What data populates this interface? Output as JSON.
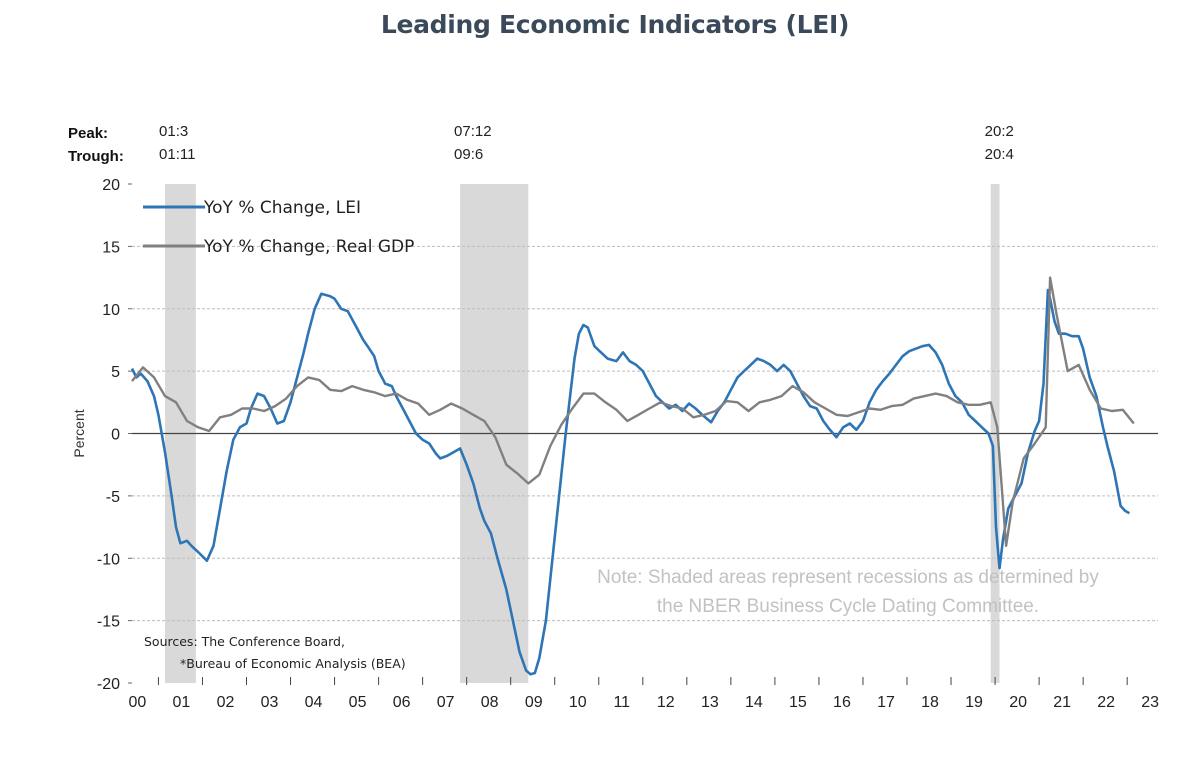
{
  "title": "Leading Economic Indicators  (LEI)",
  "chart_data": {
    "type": "line",
    "ylabel": "Percent",
    "ylim": [
      -20,
      20
    ],
    "yticks": [
      20,
      15,
      10,
      5,
      0,
      -5,
      -10,
      -15,
      -20
    ],
    "xlim": [
      2000,
      2023.3
    ],
    "xticks": [
      {
        "x": 2000.1,
        "label": "00"
      },
      {
        "x": 2001.1,
        "label": "01"
      },
      {
        "x": 2002.1,
        "label": "02"
      },
      {
        "x": 2003.1,
        "label": "03"
      },
      {
        "x": 2004.1,
        "label": "04"
      },
      {
        "x": 2005.1,
        "label": "05"
      },
      {
        "x": 2006.1,
        "label": "06"
      },
      {
        "x": 2007.1,
        "label": "07"
      },
      {
        "x": 2008.1,
        "label": "08"
      },
      {
        "x": 2009.1,
        "label": "09"
      },
      {
        "x": 2010.1,
        "label": "10"
      },
      {
        "x": 2011.1,
        "label": "11"
      },
      {
        "x": 2012.1,
        "label": "12"
      },
      {
        "x": 2013.1,
        "label": "13"
      },
      {
        "x": 2014.1,
        "label": "14"
      },
      {
        "x": 2015.1,
        "label": "15"
      },
      {
        "x": 2016.1,
        "label": "16"
      },
      {
        "x": 2017.1,
        "label": "17"
      },
      {
        "x": 2018.1,
        "label": "18"
      },
      {
        "x": 2019.1,
        "label": "19"
      },
      {
        "x": 2020.1,
        "label": "20"
      },
      {
        "x": 2021.1,
        "label": "21"
      },
      {
        "x": 2022.1,
        "label": "22"
      },
      {
        "x": 2023.1,
        "label": "23"
      }
    ],
    "grid": true,
    "legend_position": "top-left",
    "recession_header": {
      "peak": "Peak:",
      "trough": "Trough:"
    },
    "recessions": [
      {
        "start": 2000.75,
        "end": 2001.45,
        "peak": "01:3",
        "trough": "01:11"
      },
      {
        "start": 2007.45,
        "end": 2009.0,
        "peak": "07:12",
        "trough": "09:6"
      },
      {
        "start": 2019.5,
        "end": 2019.7,
        "peak": "20:2",
        "trough": "20:4"
      }
    ],
    "series": [
      {
        "name": "YoY % Change, LEI",
        "color": "#2e75b6",
        "points": [
          [
            2000.0,
            5.2
          ],
          [
            2000.1,
            4.5
          ],
          [
            2000.2,
            4.8
          ],
          [
            2000.35,
            4.2
          ],
          [
            2000.5,
            3.0
          ],
          [
            2000.6,
            1.5
          ],
          [
            2000.75,
            -1.5
          ],
          [
            2000.9,
            -5.0
          ],
          [
            2001.0,
            -7.5
          ],
          [
            2001.1,
            -8.8
          ],
          [
            2001.25,
            -8.6
          ],
          [
            2001.35,
            -9.0
          ],
          [
            2001.5,
            -9.5
          ],
          [
            2001.7,
            -10.2
          ],
          [
            2001.85,
            -9.0
          ],
          [
            2002.0,
            -6.0
          ],
          [
            2002.15,
            -3.0
          ],
          [
            2002.3,
            -0.5
          ],
          [
            2002.45,
            0.5
          ],
          [
            2002.6,
            0.8
          ],
          [
            2002.7,
            2.0
          ],
          [
            2002.85,
            3.2
          ],
          [
            2003.0,
            3.0
          ],
          [
            2003.15,
            2.0
          ],
          [
            2003.3,
            0.8
          ],
          [
            2003.45,
            1.0
          ],
          [
            2003.6,
            2.5
          ],
          [
            2003.75,
            4.5
          ],
          [
            2003.9,
            6.5
          ],
          [
            2004.0,
            8.0
          ],
          [
            2004.15,
            10.0
          ],
          [
            2004.3,
            11.2
          ],
          [
            2004.5,
            11.0
          ],
          [
            2004.6,
            10.8
          ],
          [
            2004.75,
            10.0
          ],
          [
            2004.9,
            9.8
          ],
          [
            2005.1,
            8.5
          ],
          [
            2005.25,
            7.5
          ],
          [
            2005.35,
            7.0
          ],
          [
            2005.5,
            6.2
          ],
          [
            2005.6,
            5.0
          ],
          [
            2005.75,
            4.0
          ],
          [
            2005.9,
            3.8
          ],
          [
            2006.0,
            3.0
          ],
          [
            2006.15,
            2.0
          ],
          [
            2006.3,
            1.0
          ],
          [
            2006.45,
            0.0
          ],
          [
            2006.6,
            -0.5
          ],
          [
            2006.75,
            -0.8
          ],
          [
            2006.9,
            -1.6
          ],
          [
            2007.0,
            -2.0
          ],
          [
            2007.15,
            -1.8
          ],
          [
            2007.3,
            -1.5
          ],
          [
            2007.45,
            -1.2
          ],
          [
            2007.6,
            -2.5
          ],
          [
            2007.75,
            -4.0
          ],
          [
            2007.9,
            -6.0
          ],
          [
            2008.0,
            -7.0
          ],
          [
            2008.15,
            -8.0
          ],
          [
            2008.3,
            -10.0
          ],
          [
            2008.5,
            -12.5
          ],
          [
            2008.65,
            -15.0
          ],
          [
            2008.8,
            -17.5
          ],
          [
            2008.95,
            -19.0
          ],
          [
            2009.05,
            -19.3
          ],
          [
            2009.15,
            -19.2
          ],
          [
            2009.25,
            -18.0
          ],
          [
            2009.4,
            -15.0
          ],
          [
            2009.55,
            -10.0
          ],
          [
            2009.7,
            -5.0
          ],
          [
            2009.85,
            0.0
          ],
          [
            2009.95,
            3.0
          ],
          [
            2010.05,
            6.0
          ],
          [
            2010.15,
            8.0
          ],
          [
            2010.25,
            8.7
          ],
          [
            2010.35,
            8.5
          ],
          [
            2010.5,
            7.0
          ],
          [
            2010.65,
            6.5
          ],
          [
            2010.8,
            6.0
          ],
          [
            2011.0,
            5.8
          ],
          [
            2011.15,
            6.5
          ],
          [
            2011.3,
            5.8
          ],
          [
            2011.45,
            5.5
          ],
          [
            2011.6,
            5.0
          ],
          [
            2011.75,
            4.0
          ],
          [
            2011.9,
            3.0
          ],
          [
            2012.05,
            2.5
          ],
          [
            2012.2,
            2.0
          ],
          [
            2012.35,
            2.3
          ],
          [
            2012.5,
            1.8
          ],
          [
            2012.65,
            2.4
          ],
          [
            2012.8,
            2.0
          ],
          [
            2012.95,
            1.5
          ],
          [
            2013.05,
            1.2
          ],
          [
            2013.15,
            0.9
          ],
          [
            2013.3,
            1.8
          ],
          [
            2013.45,
            2.5
          ],
          [
            2013.6,
            3.5
          ],
          [
            2013.75,
            4.5
          ],
          [
            2013.9,
            5.0
          ],
          [
            2014.05,
            5.5
          ],
          [
            2014.2,
            6.0
          ],
          [
            2014.35,
            5.8
          ],
          [
            2014.5,
            5.5
          ],
          [
            2014.65,
            5.0
          ],
          [
            2014.8,
            5.5
          ],
          [
            2014.95,
            5.0
          ],
          [
            2015.1,
            4.0
          ],
          [
            2015.25,
            3.0
          ],
          [
            2015.4,
            2.2
          ],
          [
            2015.55,
            2.0
          ],
          [
            2015.7,
            1.0
          ],
          [
            2015.85,
            0.3
          ],
          [
            2016.0,
            -0.3
          ],
          [
            2016.15,
            0.5
          ],
          [
            2016.3,
            0.8
          ],
          [
            2016.45,
            0.3
          ],
          [
            2016.6,
            1.0
          ],
          [
            2016.75,
            2.5
          ],
          [
            2016.9,
            3.5
          ],
          [
            2017.05,
            4.2
          ],
          [
            2017.2,
            4.8
          ],
          [
            2017.35,
            5.5
          ],
          [
            2017.5,
            6.2
          ],
          [
            2017.65,
            6.6
          ],
          [
            2017.8,
            6.8
          ],
          [
            2017.95,
            7.0
          ],
          [
            2018.1,
            7.1
          ],
          [
            2018.25,
            6.5
          ],
          [
            2018.4,
            5.5
          ],
          [
            2018.55,
            4.0
          ],
          [
            2018.7,
            3.0
          ],
          [
            2018.85,
            2.5
          ],
          [
            2019.0,
            1.5
          ],
          [
            2019.15,
            1.0
          ],
          [
            2019.3,
            0.5
          ],
          [
            2019.45,
            0.0
          ],
          [
            2019.55,
            -1.0
          ],
          [
            2019.62,
            -7.5
          ],
          [
            2019.7,
            -10.8
          ],
          [
            2019.78,
            -8.5
          ],
          [
            2019.9,
            -6.0
          ],
          [
            2020.05,
            -5.0
          ],
          [
            2020.2,
            -4.0
          ],
          [
            2020.35,
            -1.5
          ],
          [
            2020.5,
            0.2
          ],
          [
            2020.6,
            1.0
          ],
          [
            2020.7,
            4.0
          ],
          [
            2020.8,
            11.5
          ],
          [
            2020.85,
            10.8
          ],
          [
            2020.95,
            9.0
          ],
          [
            2021.05,
            8.0
          ],
          [
            2021.2,
            8.0
          ],
          [
            2021.35,
            7.8
          ],
          [
            2021.5,
            7.8
          ],
          [
            2021.6,
            6.8
          ],
          [
            2021.75,
            4.5
          ],
          [
            2021.9,
            3.0
          ],
          [
            2022.05,
            0.5
          ],
          [
            2022.15,
            -1.0
          ],
          [
            2022.3,
            -3.0
          ],
          [
            2022.45,
            -5.8
          ],
          [
            2022.55,
            -6.2
          ],
          [
            2022.65,
            -6.4
          ]
        ]
      },
      {
        "name": "YoY % Change, Real GDP",
        "color": "#808080",
        "points": [
          [
            2000.0,
            4.2
          ],
          [
            2000.25,
            5.3
          ],
          [
            2000.5,
            4.5
          ],
          [
            2000.75,
            3.0
          ],
          [
            2001.0,
            2.5
          ],
          [
            2001.25,
            1.0
          ],
          [
            2001.5,
            0.5
          ],
          [
            2001.75,
            0.2
          ],
          [
            2002.0,
            1.3
          ],
          [
            2002.25,
            1.5
          ],
          [
            2002.5,
            2.0
          ],
          [
            2002.75,
            2.0
          ],
          [
            2003.0,
            1.8
          ],
          [
            2003.25,
            2.2
          ],
          [
            2003.5,
            2.8
          ],
          [
            2003.75,
            3.8
          ],
          [
            2004.0,
            4.5
          ],
          [
            2004.25,
            4.3
          ],
          [
            2004.5,
            3.5
          ],
          [
            2004.75,
            3.4
          ],
          [
            2005.0,
            3.8
          ],
          [
            2005.25,
            3.5
          ],
          [
            2005.5,
            3.3
          ],
          [
            2005.75,
            3.0
          ],
          [
            2006.0,
            3.2
          ],
          [
            2006.25,
            2.7
          ],
          [
            2006.5,
            2.4
          ],
          [
            2006.75,
            1.5
          ],
          [
            2007.0,
            1.9
          ],
          [
            2007.25,
            2.4
          ],
          [
            2007.5,
            2.0
          ],
          [
            2007.75,
            1.5
          ],
          [
            2008.0,
            1.0
          ],
          [
            2008.25,
            -0.3
          ],
          [
            2008.5,
            -2.5
          ],
          [
            2008.75,
            -3.2
          ],
          [
            2009.0,
            -4.0
          ],
          [
            2009.25,
            -3.3
          ],
          [
            2009.5,
            -1.0
          ],
          [
            2009.75,
            0.7
          ],
          [
            2010.0,
            2.0
          ],
          [
            2010.25,
            3.2
          ],
          [
            2010.5,
            3.2
          ],
          [
            2010.75,
            2.5
          ],
          [
            2011.0,
            1.9
          ],
          [
            2011.25,
            1.0
          ],
          [
            2011.5,
            1.5
          ],
          [
            2011.75,
            2.0
          ],
          [
            2012.0,
            2.5
          ],
          [
            2012.25,
            2.2
          ],
          [
            2012.5,
            2.0
          ],
          [
            2012.75,
            1.3
          ],
          [
            2013.0,
            1.5
          ],
          [
            2013.25,
            1.8
          ],
          [
            2013.5,
            2.6
          ],
          [
            2013.75,
            2.5
          ],
          [
            2014.0,
            1.8
          ],
          [
            2014.25,
            2.5
          ],
          [
            2014.5,
            2.7
          ],
          [
            2014.75,
            3.0
          ],
          [
            2015.0,
            3.8
          ],
          [
            2015.25,
            3.3
          ],
          [
            2015.5,
            2.5
          ],
          [
            2015.75,
            2.0
          ],
          [
            2016.0,
            1.5
          ],
          [
            2016.25,
            1.4
          ],
          [
            2016.5,
            1.7
          ],
          [
            2016.75,
            2.0
          ],
          [
            2017.0,
            1.9
          ],
          [
            2017.25,
            2.2
          ],
          [
            2017.5,
            2.3
          ],
          [
            2017.75,
            2.8
          ],
          [
            2018.0,
            3.0
          ],
          [
            2018.25,
            3.2
          ],
          [
            2018.5,
            3.0
          ],
          [
            2018.75,
            2.5
          ],
          [
            2019.0,
            2.3
          ],
          [
            2019.25,
            2.3
          ],
          [
            2019.5,
            2.5
          ],
          [
            2019.65,
            0.5
          ],
          [
            2019.85,
            -9.0
          ],
          [
            2020.0,
            -5.5
          ],
          [
            2020.25,
            -2.0
          ],
          [
            2020.5,
            -0.8
          ],
          [
            2020.75,
            0.5
          ],
          [
            2020.85,
            12.5
          ],
          [
            2021.0,
            9.5
          ],
          [
            2021.25,
            5.0
          ],
          [
            2021.5,
            5.5
          ],
          [
            2021.75,
            3.5
          ],
          [
            2022.0,
            2.0
          ],
          [
            2022.25,
            1.8
          ],
          [
            2022.5,
            1.9
          ],
          [
            2022.75,
            0.8
          ]
        ]
      }
    ],
    "note_lines": [
      "Note: Shaded areas represent recessions as determined by",
      "the NBER Business Cycle Dating Committee."
    ],
    "sources_lines": [
      "Sources: The Conference Board,",
      "*Bureau of Economic Analysis (BEA)"
    ]
  }
}
